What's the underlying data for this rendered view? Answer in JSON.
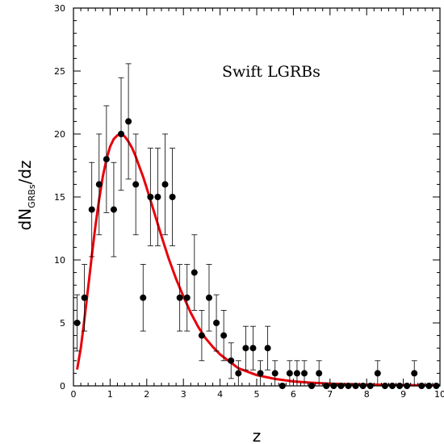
{
  "chart_data": {
    "type": "scatter",
    "title": "",
    "xlabel": "z",
    "ylabel": {
      "prefix": "dN",
      "subscript": "GRBs",
      "suffix": "/dz"
    },
    "annotation": "Swift  LGRBs",
    "xlim": [
      0,
      10
    ],
    "ylim": [
      0,
      30
    ],
    "x_ticks": [
      "0",
      "1",
      "2",
      "3",
      "4",
      "5",
      "6",
      "7",
      "8",
      "9",
      "10"
    ],
    "y_ticks": [
      "0",
      "5",
      "10",
      "15",
      "20",
      "25",
      "30"
    ],
    "grid": false,
    "legend": "none",
    "series": [
      {
        "kind": "points-with-errorbars",
        "color": "#000000",
        "x": [
          0.1,
          0.3,
          0.5,
          0.7,
          0.9,
          1.1,
          1.3,
          1.5,
          1.7,
          1.9,
          2.1,
          2.3,
          2.5,
          2.7,
          2.9,
          3.1,
          3.3,
          3.5,
          3.7,
          3.9,
          4.1,
          4.3,
          4.5,
          4.7,
          4.9,
          5.1,
          5.3,
          5.5,
          5.7,
          5.9,
          6.1,
          6.3,
          6.5,
          6.7,
          6.9,
          7.1,
          7.3,
          7.5,
          7.7,
          7.9,
          8.1,
          8.3,
          8.5,
          8.7,
          8.9,
          9.1,
          9.3,
          9.5,
          9.7,
          9.9
        ],
        "y": [
          5,
          7,
          14,
          16,
          18,
          14,
          20,
          21,
          16,
          7,
          15,
          15,
          16,
          15,
          7,
          7,
          9,
          4,
          7,
          5,
          4,
          2,
          1,
          3,
          3,
          1,
          3,
          1,
          0,
          1,
          1,
          1,
          0,
          1,
          0,
          0,
          0,
          0,
          0,
          0,
          0,
          1,
          0,
          0,
          0,
          0,
          1,
          0,
          0,
          0
        ]
      },
      {
        "kind": "model-curve",
        "color": "#e8000b",
        "x": [
          0.1,
          0.2,
          0.3,
          0.4,
          0.5,
          0.6,
          0.7,
          0.8,
          0.9,
          1.0,
          1.1,
          1.2,
          1.3,
          1.4,
          1.5,
          1.6,
          1.7,
          1.8,
          1.9,
          2.0,
          2.2,
          2.4,
          2.6,
          2.8,
          3.0,
          3.2,
          3.4,
          3.6,
          3.8,
          4.0,
          4.5,
          5.0,
          5.5,
          6.0,
          6.5,
          7.0,
          7.5,
          8.0,
          8.5,
          9.0,
          9.5,
          10.0
        ],
        "y": [
          1.3,
          3.0,
          5.3,
          7.8,
          10.3,
          12.7,
          14.8,
          16.6,
          18.0,
          19.0,
          19.6,
          19.9,
          20.0,
          19.8,
          19.4,
          18.9,
          18.2,
          17.4,
          16.6,
          15.7,
          13.8,
          11.9,
          10.1,
          8.5,
          7.1,
          5.8,
          4.7,
          3.8,
          3.1,
          2.5,
          1.4,
          0.85,
          0.55,
          0.35,
          0.25,
          0.18,
          0.13,
          0.1,
          0.08,
          0.06,
          0.05,
          0.04
        ]
      }
    ]
  }
}
